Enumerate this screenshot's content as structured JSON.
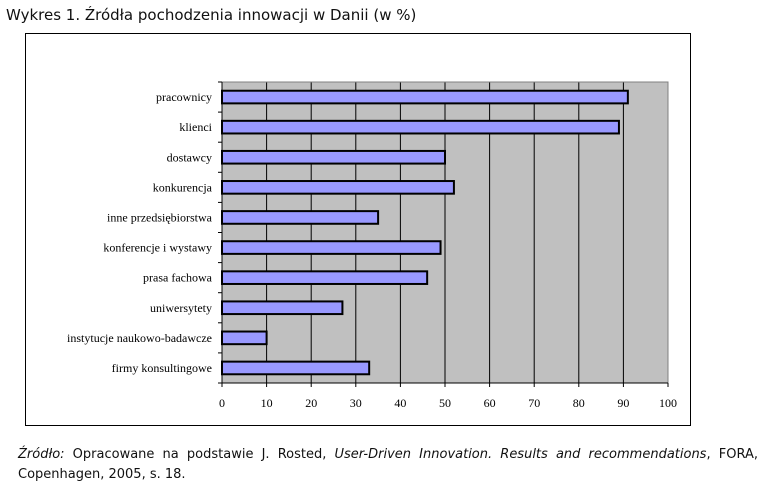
{
  "title": "Wykres 1. Źródła pochodzenia innowacji w Danii (w %)",
  "source": {
    "label": "Źródło:",
    "text_before": " Opracowane na podstawie J. Rosted, ",
    "work_title": "User-Driven Innovation. Results and recommendations",
    "text_after": ", FORA, Copenhagen, 2005, s. 18."
  },
  "colors": {
    "bar_fill": "#9999ff",
    "plot_background": "#c0c0c0",
    "grid": "#000000"
  },
  "chart_data": {
    "type": "bar",
    "orientation": "horizontal",
    "categories": [
      "pracownicy",
      "klienci",
      "dostawcy",
      "konkurencja",
      "inne przedsiębiorstwa",
      "konferencje i wystawy",
      "prasa fachowa",
      "uniwersytety",
      "instytucje naukowo-badawcze",
      "firmy konsultingowe"
    ],
    "values": [
      91,
      89,
      50,
      52,
      35,
      49,
      46,
      27,
      10,
      33
    ],
    "xlim": [
      0,
      100
    ],
    "xticks": [
      0,
      10,
      20,
      30,
      40,
      50,
      60,
      70,
      80,
      90,
      100
    ],
    "grid": true,
    "legend": "none"
  }
}
